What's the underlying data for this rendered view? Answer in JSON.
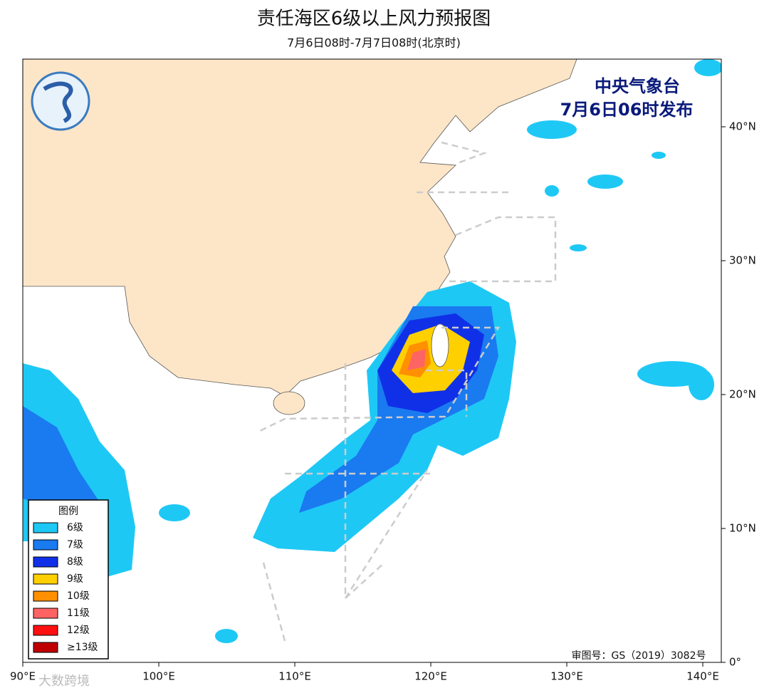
{
  "header": {
    "title": "责任海区6级以上风力预报图",
    "subtitle": "7月6日08时-7月7日08时(北京时)"
  },
  "issuer": {
    "agency": "中央气象台",
    "time": "7月6日06时发布"
  },
  "legend": {
    "title": "图例",
    "items": [
      {
        "label": "6级",
        "color": "#1ec8f5"
      },
      {
        "label": "7级",
        "color": "#1a7af0"
      },
      {
        "label": "8级",
        "color": "#1030e8"
      },
      {
        "label": "9级",
        "color": "#ffd000"
      },
      {
        "label": "10级",
        "color": "#ff9000"
      },
      {
        "label": "11级",
        "color": "#ff6464"
      },
      {
        "label": "12级",
        "color": "#ff1010"
      },
      {
        "label": "≥13级",
        "color": "#c00000"
      }
    ]
  },
  "axes": {
    "x_labels": [
      "90°E",
      "100°E",
      "110°E",
      "120°E",
      "130°E",
      "140°E"
    ],
    "y_labels": [
      "0°",
      "10°N",
      "20°N",
      "30°N",
      "40°N"
    ]
  },
  "approval": "审图号：GS（2019）3082号",
  "watermark": "大数跨境"
}
